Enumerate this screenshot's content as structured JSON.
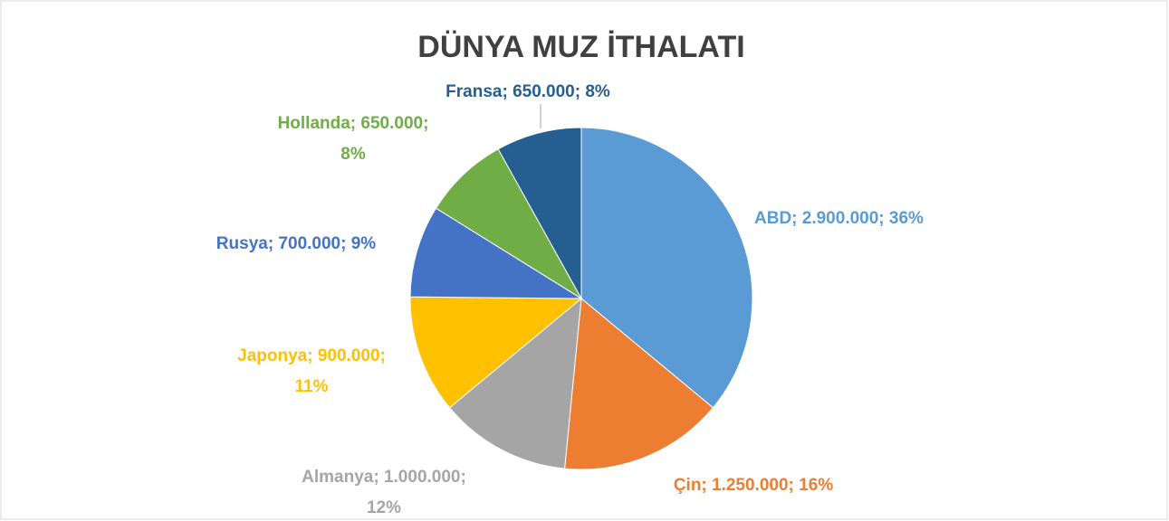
{
  "chart_data": {
    "type": "pie",
    "title": "DÜNYA MUZ İTHALATI",
    "values": [
      2900000,
      1250000,
      1000000,
      900000,
      700000,
      650000,
      650000
    ],
    "value_labels": [
      "ABD; 2.900.000; 36%",
      "Çin; 1.250.000; 16%",
      "Almanya; 1.000.000; 12%",
      "Japonya; 900.000; 11%",
      "Rusya; 700.000; 9%",
      "Hollanda; 650.000; 8%",
      "Fransa; 650.000; 8%"
    ],
    "colors": [
      "#5b9bd5",
      "#ed7d31",
      "#a5a5a5",
      "#ffc000",
      "#4472c4",
      "#70ad47",
      "#255e91"
    ]
  }
}
